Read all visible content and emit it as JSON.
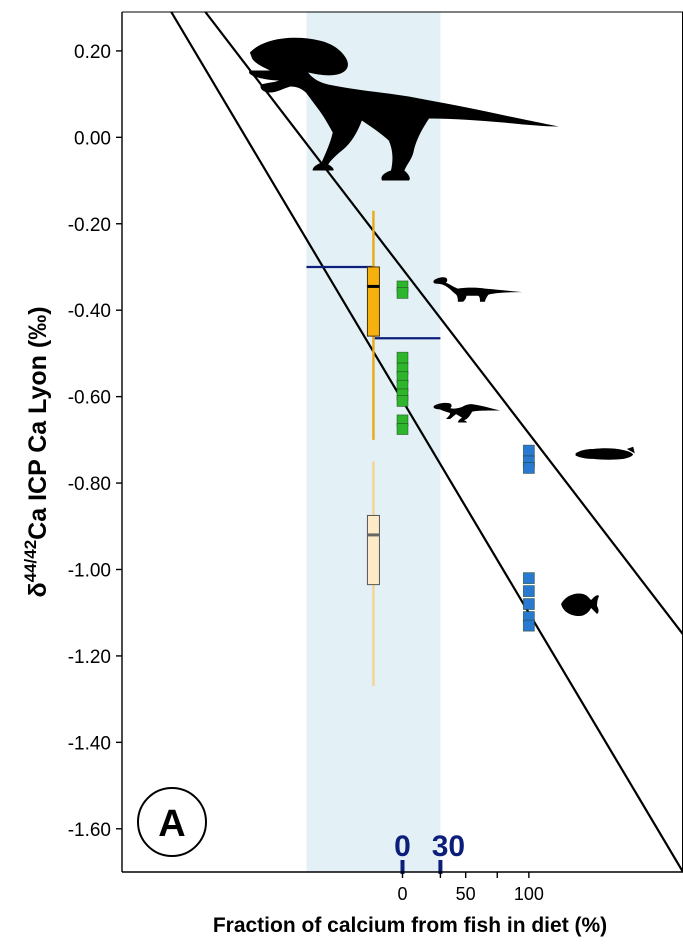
{
  "chart_data": {
    "type": "box-scatter",
    "title": "",
    "panel_label": "A",
    "xlabel": "Fraction of calcium from fish in diet (%)",
    "ylabel": {
      "prefix": "δ",
      "superscript": "44/42",
      "main": "Ca ICP Ca Lyon (‰)"
    },
    "ylim": [
      -1.7,
      0.29
    ],
    "y_ticks": [
      {
        "value": 0.2,
        "label": "0.20"
      },
      {
        "value": 0.0,
        "label": "0.00"
      },
      {
        "value": -0.2,
        "label": "-0.20"
      },
      {
        "value": -0.4,
        "label": "-0.40"
      },
      {
        "value": -0.6,
        "label": "-0.60"
      },
      {
        "value": -0.8,
        "label": "-0.80"
      },
      {
        "value": -1.0,
        "label": "-1.00"
      },
      {
        "value": -1.2,
        "label": "-1.20"
      },
      {
        "value": -1.4,
        "label": "-1.40"
      },
      {
        "value": -1.6,
        "label": "-1.60"
      }
    ],
    "xlim": [
      -222,
      222
    ],
    "x_ticks": [
      {
        "value": 0,
        "label": "0"
      },
      {
        "value": 50,
        "label": "50"
      },
      {
        "value": 100,
        "label": "100"
      }
    ],
    "shaded_band": {
      "x_range": [
        -76,
        30
      ],
      "color": "#e3f1f7"
    },
    "range_markers": [
      {
        "value": 0,
        "label": "0"
      },
      {
        "value": 30,
        "label": "30"
      }
    ],
    "regression_lines": [
      {
        "name": "upper",
        "points": [
          [
            -156,
            0.29
          ],
          [
            222,
            -1.15
          ]
        ]
      },
      {
        "name": "lower",
        "points": [
          [
            -183,
            0.29
          ],
          [
            222,
            -1.7
          ]
        ]
      }
    ],
    "range_lines": [
      {
        "x_from": -76,
        "x_to": -22,
        "y": -0.3
      },
      {
        "x_from": -22,
        "x_to": 30,
        "y": -0.465
      }
    ],
    "boxplots": [
      {
        "group": "spinosaur",
        "x": -23,
        "whisker_low": -0.7,
        "q1": -0.46,
        "median": -0.345,
        "q3": -0.3,
        "whisker_high": -0.17,
        "fill": "#f7b10f",
        "stroke": "#4a3410",
        "whisker_color": "#e9a915",
        "median_color": "#000000"
      },
      {
        "group": "spinosaur-light",
        "x": -23,
        "whisker_low": -1.27,
        "q1": -1.035,
        "median": -0.92,
        "q3": -0.875,
        "whisker_high": -0.75,
        "fill": "#fdebc7",
        "stroke": "#555555",
        "whisker_color": "#f5d48e",
        "median_color": "#666666"
      }
    ],
    "scatter_groups": [
      {
        "name": "sauropod",
        "x": 0,
        "values": [
          -0.345,
          -0.36
        ],
        "color": "#2db52b"
      },
      {
        "name": "ornithopod",
        "x": 0,
        "values": [
          -0.51,
          -0.535,
          -0.555,
          -0.575,
          -0.595,
          -0.61,
          -0.655,
          -0.675
        ],
        "color": "#2db52b"
      },
      {
        "name": "fish-1",
        "x": 100,
        "values": [
          -0.725,
          -0.75,
          -0.765
        ],
        "color": "#2a79d0"
      },
      {
        "name": "fish-2",
        "x": 100,
        "values": [
          -1.02,
          -1.05,
          -1.08,
          -1.11,
          -1.13
        ],
        "color": "#2a79d0"
      }
    ],
    "silhouettes": [
      {
        "name": "theropod-icon",
        "x": -10,
        "y": 0.15
      },
      {
        "name": "sauropod-icon",
        "x": 25,
        "y": -0.35
      },
      {
        "name": "ornithopod-icon",
        "x": 25,
        "y": -0.635
      },
      {
        "name": "fish-long-icon",
        "x": 137,
        "y": -0.73
      },
      {
        "name": "fish-round-icon",
        "x": 135,
        "y": -1.08
      }
    ],
    "grid": false,
    "legend": "none"
  }
}
